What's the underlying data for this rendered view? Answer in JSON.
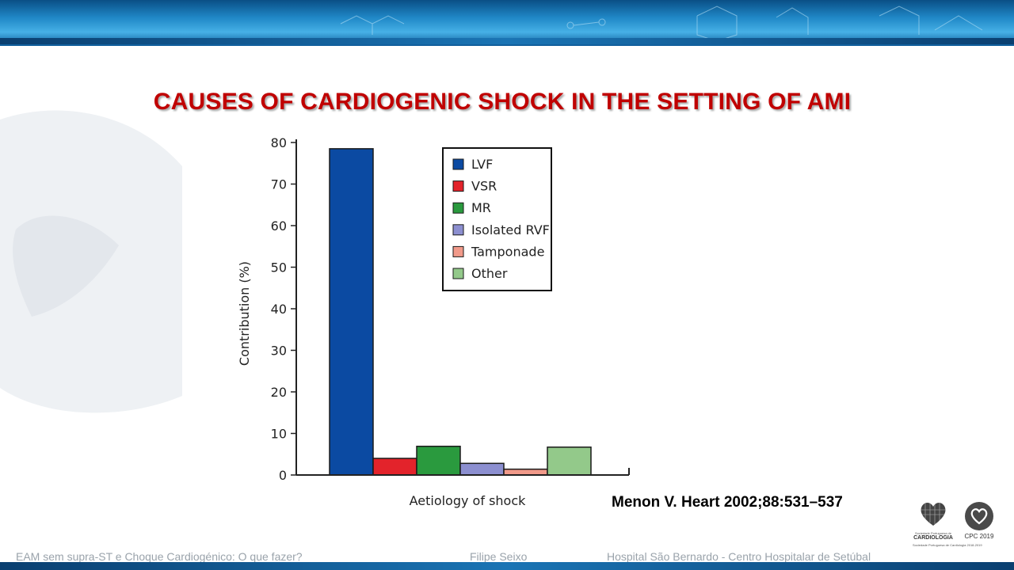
{
  "slide": {
    "title": "CAUSES OF CARDIOGENIC SHOCK IN THE SETTING OF AMI",
    "reference": "Menon V. Heart 2002;88:531–537"
  },
  "footer": {
    "talk_title": "EAM sem supra-ST e Choque Cardiogénico: O que fazer?",
    "presenter": "Filipe Seixo",
    "institution": "Hospital São Bernardo  - Centro Hospitalar de Setúbal"
  },
  "logos": {
    "spc_name": "CARDIOLOGIA",
    "spc_small_top": "Sociedade Portuguesa de",
    "spc_small_bottom": "Sociedade Portuguesa de Cardiologia 2018-2019",
    "cpc_label": "CPC 2019"
  },
  "colors": {
    "title": "#c00000",
    "banner": "#1f87c6"
  },
  "chart_data": {
    "type": "bar",
    "title": "",
    "xlabel": "Aetiology of shock",
    "ylabel": "Contribution (%)",
    "ylim": [
      0,
      80
    ],
    "yticks": [
      0,
      10,
      20,
      30,
      40,
      50,
      60,
      70,
      80
    ],
    "legend_position": "top-right",
    "grid": false,
    "categories": [
      "LVF",
      "VSR",
      "MR",
      "Isolated RVF",
      "Tamponade",
      "Other"
    ],
    "values": [
      78.5,
      4.0,
      6.9,
      2.8,
      1.4,
      6.7
    ],
    "colors": [
      "#0b4aa2",
      "#e3232b",
      "#2a9a3e",
      "#8c8fd0",
      "#f19a8a",
      "#93c98a"
    ]
  }
}
